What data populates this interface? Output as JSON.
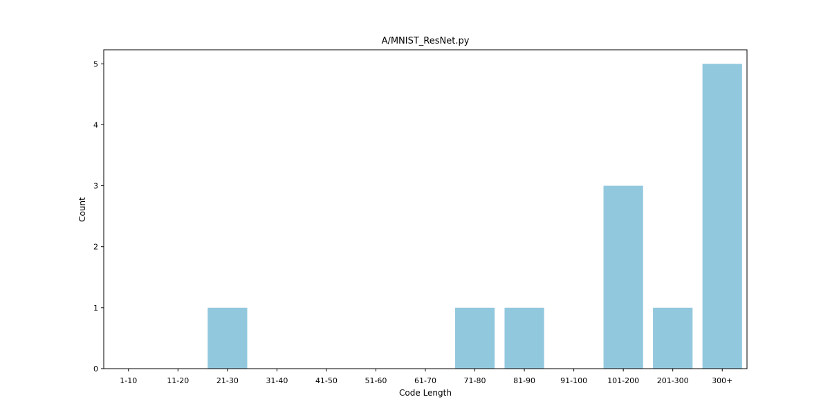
{
  "chart_data": {
    "type": "bar",
    "title": "A/MNIST_ResNet.py",
    "xlabel": "Code Length",
    "ylabel": "Count",
    "categories": [
      "1-10",
      "11-20",
      "21-30",
      "31-40",
      "41-50",
      "51-60",
      "61-70",
      "71-80",
      "81-90",
      "91-100",
      "101-200",
      "201-300",
      "300+"
    ],
    "values": [
      0,
      0,
      1,
      0,
      0,
      0,
      0,
      1,
      1,
      0,
      3,
      1,
      5
    ],
    "ylim": [
      0,
      5.23
    ],
    "yticks": [
      0,
      1,
      2,
      3,
      4,
      5
    ],
    "grid": false,
    "bar_color": "#92c8dd"
  }
}
